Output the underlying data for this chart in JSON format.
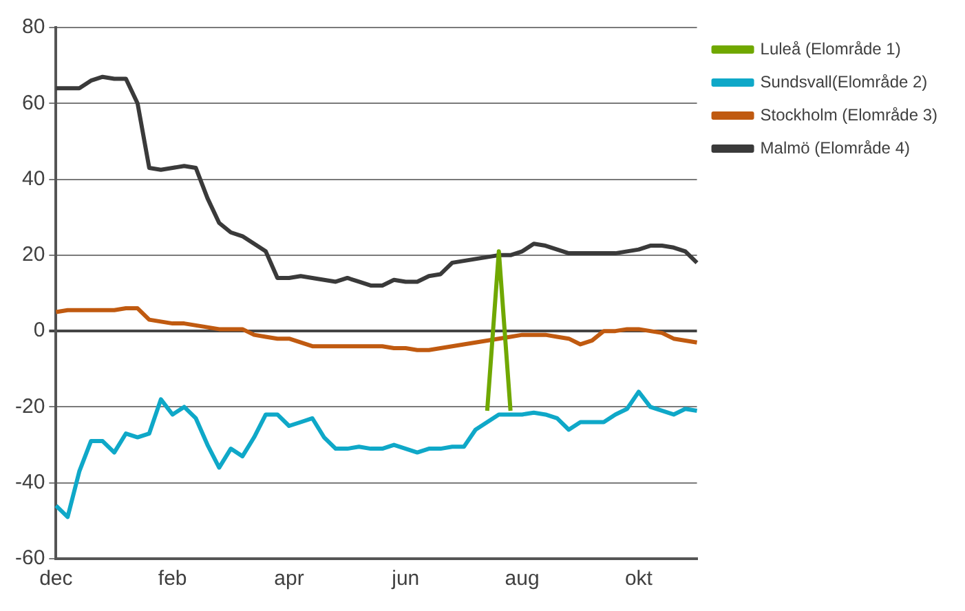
{
  "chart_data": {
    "type": "line",
    "categories": [
      "dec",
      null,
      null,
      null,
      null,
      null,
      null,
      null,
      null,
      null,
      "feb",
      null,
      null,
      null,
      null,
      null,
      null,
      null,
      null,
      null,
      "apr",
      null,
      null,
      null,
      null,
      null,
      null,
      null,
      null,
      null,
      "jun",
      null,
      null,
      null,
      null,
      null,
      null,
      null,
      null,
      null,
      "aug",
      null,
      null,
      null,
      null,
      null,
      null,
      null,
      null,
      null,
      "okt",
      null,
      null,
      null,
      null,
      null
    ],
    "series": [
      {
        "name": "Luleå (Elområde 1)",
        "color": "#70a800",
        "values": [
          null,
          null,
          null,
          null,
          null,
          null,
          null,
          null,
          null,
          null,
          null,
          null,
          null,
          null,
          null,
          null,
          null,
          null,
          null,
          null,
          null,
          null,
          null,
          null,
          null,
          null,
          null,
          null,
          null,
          null,
          null,
          null,
          null,
          null,
          null,
          null,
          null,
          -21,
          21,
          -21,
          null,
          null,
          null,
          null,
          null,
          null,
          null,
          null,
          null,
          null,
          null,
          null,
          null,
          null,
          null,
          null
        ]
      },
      {
        "name": "Sundsvall(Elområde 2)",
        "color": "#0fa8c8",
        "values": [
          -46,
          -49,
          -37,
          -29,
          -29,
          -32,
          -27,
          -28,
          -27,
          -18,
          -22,
          -20,
          -23,
          -30,
          -36,
          -31,
          -33,
          -28,
          -22,
          -22,
          -25,
          -24,
          -23,
          -28,
          -31,
          -31,
          -30.5,
          -31,
          -31,
          -30,
          -31,
          -32,
          -31,
          -31,
          -30.5,
          -30.5,
          -26,
          -24,
          -22,
          -22,
          -22,
          -21.5,
          -22,
          -23,
          -26,
          -24,
          -24,
          -24,
          -22,
          -20.5,
          -16,
          -20,
          -21,
          -22,
          -20.5,
          -21
        ]
      },
      {
        "name": "Stockholm (Elområde 3)",
        "color": "#c05a10",
        "values": [
          5,
          5.5,
          5.5,
          5.5,
          5.5,
          5.5,
          6,
          6,
          3,
          2.5,
          2,
          2,
          1.5,
          1,
          0.5,
          0.5,
          0.5,
          -1,
          -1.5,
          -2,
          -2,
          -3,
          -4,
          -4,
          -4,
          -4,
          -4,
          -4,
          -4,
          -4.5,
          -4.5,
          -5,
          -5,
          -4.5,
          -4,
          -3.5,
          -3,
          -2.5,
          -2,
          -1.5,
          -1,
          -1,
          -1,
          -1.5,
          -2,
          -3.5,
          -2.5,
          0,
          0,
          0.5,
          0.5,
          0,
          -0.5,
          -2,
          -2.5,
          -3
        ]
      },
      {
        "name": "Malmö (Elområde 4)",
        "color": "#3a3a3a",
        "values": [
          64,
          64,
          64,
          66,
          67,
          66.5,
          66.5,
          60,
          43,
          42.5,
          43,
          43.5,
          43,
          35,
          28.5,
          26,
          25,
          23,
          21,
          14,
          14,
          14.5,
          14,
          13.5,
          13,
          14,
          13,
          12,
          12,
          13.5,
          13,
          13,
          14.5,
          15,
          18,
          18.5,
          19,
          19.5,
          20,
          20,
          21,
          23,
          22.5,
          21.5,
          20.5,
          20.5,
          20.5,
          20.5,
          20.5,
          21,
          21.5,
          22.5,
          22.5,
          22,
          21,
          18
        ]
      }
    ],
    "ylim": [
      -60,
      80
    ],
    "yticks": [
      -60,
      -40,
      -20,
      0,
      20,
      40,
      60,
      80
    ],
    "grid": "y",
    "legend": "right"
  }
}
